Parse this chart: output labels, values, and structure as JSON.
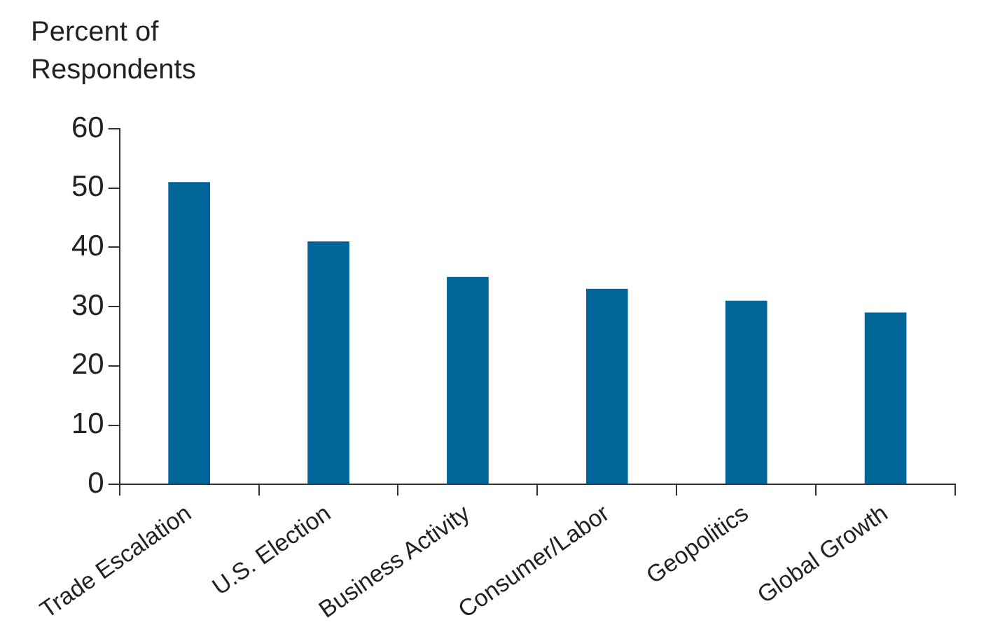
{
  "chart_data": {
    "type": "bar",
    "ylabel": "Percent of Respondents",
    "categories": [
      "Trade Escalation",
      "U.S. Election",
      "Business Activity",
      "Consumer/Labor",
      "Geopolitics",
      "Global Growth"
    ],
    "values": [
      51,
      41,
      35,
      33,
      31,
      29
    ],
    "color": "#006699",
    "ylim": [
      0,
      60
    ],
    "yticks": [
      0,
      10,
      20,
      30,
      40,
      50,
      60
    ],
    "grid": false,
    "legend": false
  }
}
